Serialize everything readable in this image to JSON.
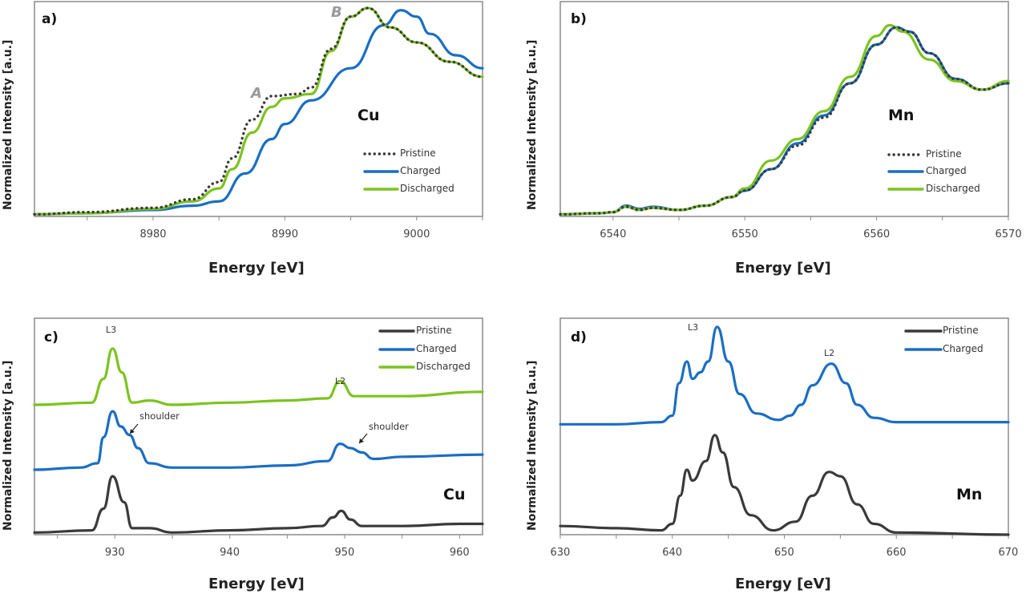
{
  "colors": {
    "pristine": "#3a3a3a",
    "charged": "#1b6ec2",
    "discharged": "#7cc31f",
    "feature_label": "#999999"
  },
  "chart_data": [
    {
      "type": "line",
      "panel_label": "a)",
      "element": "Cu",
      "xlabel": "Energy [eV]",
      "ylabel": "Normalized Intensity [a.u.]",
      "xlim": [
        8971,
        9005
      ],
      "ylim": [
        0,
        1
      ],
      "xticks": [
        8980,
        8990,
        9000
      ],
      "grid": false,
      "legend_placement": "right",
      "feature_labels": [
        "A",
        "B"
      ],
      "series": [
        {
          "name": "Pristine",
          "style": "dotted",
          "color": "#3a3a3a",
          "x": [
            8971,
            8975,
            8980,
            8983,
            8985,
            8986,
            8987.5,
            8989,
            8991,
            8992,
            8993.5,
            8995,
            8996.3,
            8998,
            9000,
            9002.5,
            9005
          ],
          "y": [
            0.01,
            0.02,
            0.04,
            0.08,
            0.16,
            0.27,
            0.45,
            0.56,
            0.57,
            0.6,
            0.78,
            0.93,
            0.97,
            0.88,
            0.81,
            0.72,
            0.65
          ]
        },
        {
          "name": "Charged",
          "style": "solid",
          "color": "#1b6ec2",
          "x": [
            8971,
            8975,
            8980,
            8983,
            8985,
            8987,
            8989,
            8990,
            8992,
            8995,
            8997.5,
            8998.8,
            9000,
            9001,
            9003,
            9005
          ],
          "y": [
            0.01,
            0.015,
            0.03,
            0.05,
            0.07,
            0.2,
            0.36,
            0.43,
            0.54,
            0.69,
            0.89,
            0.96,
            0.93,
            0.85,
            0.75,
            0.69
          ]
        },
        {
          "name": "Discharged",
          "style": "solid",
          "color": "#7cc31f",
          "x": [
            8971,
            8975,
            8980,
            8983,
            8985,
            8986,
            8987.5,
            8989,
            8990,
            8992,
            8993.5,
            8995,
            8996.3,
            8998,
            9000,
            9002.5,
            9005
          ],
          "y": [
            0.01,
            0.015,
            0.035,
            0.07,
            0.13,
            0.22,
            0.39,
            0.51,
            0.55,
            0.57,
            0.77,
            0.93,
            0.97,
            0.88,
            0.81,
            0.72,
            0.65
          ]
        }
      ]
    },
    {
      "type": "line",
      "panel_label": "b)",
      "element": "Mn",
      "xlabel": "Energy [eV]",
      "ylabel": "Normalized Intensity [a.u.]",
      "xlim": [
        6536,
        6570
      ],
      "ylim": [
        0,
        1
      ],
      "xticks": [
        6540,
        6550,
        6560,
        6570
      ],
      "grid": false,
      "legend_placement": "right",
      "series": [
        {
          "name": "Pristine",
          "style": "dotted",
          "color": "#3a3a3a",
          "x": [
            6536,
            6539,
            6540,
            6541,
            6542,
            6543,
            6545,
            6547,
            6549,
            6550,
            6552,
            6554,
            6556,
            6558,
            6560,
            6561.5,
            6562.5,
            6564,
            6566,
            6568,
            6570
          ],
          "y": [
            0.01,
            0.015,
            0.02,
            0.045,
            0.03,
            0.04,
            0.03,
            0.05,
            0.09,
            0.12,
            0.22,
            0.33,
            0.46,
            0.62,
            0.8,
            0.88,
            0.86,
            0.76,
            0.64,
            0.59,
            0.62
          ]
        },
        {
          "name": "Charged",
          "style": "solid",
          "color": "#1b6ec2",
          "x": [
            6536,
            6539,
            6540,
            6541,
            6542,
            6543,
            6545,
            6547,
            6549,
            6550,
            6552,
            6554,
            6556,
            6558,
            6560,
            6561.5,
            6562.5,
            6564,
            6566,
            6568,
            6570
          ],
          "y": [
            0.01,
            0.015,
            0.02,
            0.05,
            0.035,
            0.045,
            0.03,
            0.05,
            0.09,
            0.12,
            0.22,
            0.34,
            0.47,
            0.62,
            0.8,
            0.88,
            0.86,
            0.76,
            0.64,
            0.59,
            0.62
          ]
        },
        {
          "name": "Discharged",
          "style": "solid",
          "color": "#7cc31f",
          "x": [
            6536,
            6539,
            6540,
            6541,
            6542,
            6543,
            6545,
            6547,
            6549,
            6550,
            6552,
            6554,
            6556,
            6558,
            6560,
            6561,
            6562,
            6564,
            6566,
            6568,
            6570
          ],
          "y": [
            0.01,
            0.015,
            0.02,
            0.045,
            0.03,
            0.04,
            0.03,
            0.05,
            0.09,
            0.13,
            0.26,
            0.36,
            0.49,
            0.65,
            0.84,
            0.89,
            0.86,
            0.73,
            0.63,
            0.59,
            0.63
          ]
        }
      ]
    },
    {
      "type": "line",
      "panel_label": "c)",
      "element": "Cu",
      "xlabel": "Energy [eV]",
      "ylabel": "Normalized Intensity [a.u.]",
      "xlim": [
        923,
        962
      ],
      "ylim": [
        0,
        1
      ],
      "xticks": [
        930,
        940,
        950,
        960
      ],
      "grid": false,
      "legend_placement": "top-right",
      "peak_labels": [
        "L3",
        "L2"
      ],
      "annotations": [
        "shoulder",
        "shoulder"
      ],
      "series": [
        {
          "name": "Pristine",
          "style": "solid",
          "color": "#3a3a3a",
          "x": [
            923,
            928,
            929,
            929.8,
            930.8,
            931.5,
            933,
            935,
            940,
            945,
            948,
            949,
            949.7,
            950.5,
            951.5,
            955,
            960,
            962
          ],
          "y": [
            0.01,
            0.02,
            0.12,
            0.27,
            0.15,
            0.03,
            0.03,
            0.01,
            0.02,
            0.03,
            0.04,
            0.08,
            0.11,
            0.07,
            0.04,
            0.04,
            0.05,
            0.05
          ]
        },
        {
          "name": "Charged",
          "style": "solid",
          "color": "#1b6ec2",
          "x": [
            923,
            927,
            928.5,
            929,
            929.8,
            930.5,
            931.3,
            932,
            933,
            935,
            940,
            945,
            948.5,
            949.6,
            950.5,
            951.5,
            952.5,
            955,
            962
          ],
          "y": [
            0.3,
            0.31,
            0.33,
            0.45,
            0.57,
            0.5,
            0.46,
            0.4,
            0.33,
            0.31,
            0.31,
            0.32,
            0.34,
            0.42,
            0.4,
            0.38,
            0.35,
            0.36,
            0.37
          ]
        },
        {
          "name": "Discharged",
          "style": "solid",
          "color": "#7cc31f",
          "x": [
            923,
            928,
            929,
            929.8,
            930.6,
            931.5,
            933,
            935,
            940,
            945,
            948.5,
            949.6,
            950.8,
            955,
            962
          ],
          "y": [
            0.6,
            0.61,
            0.72,
            0.86,
            0.75,
            0.61,
            0.62,
            0.6,
            0.61,
            0.62,
            0.63,
            0.71,
            0.64,
            0.64,
            0.66
          ]
        }
      ]
    },
    {
      "type": "line",
      "panel_label": "d)",
      "element": "Mn",
      "xlabel": "Energy [eV]",
      "ylabel": "Normalized Intensity [a.u.]",
      "xlim": [
        630,
        670
      ],
      "ylim": [
        0,
        1
      ],
      "xticks": [
        630,
        640,
        650,
        660,
        670
      ],
      "grid": false,
      "legend_placement": "top-right",
      "peak_labels": [
        "L3",
        "L2"
      ],
      "series": [
        {
          "name": "Pristine",
          "style": "solid",
          "color": "#3a3a3a",
          "x": [
            630,
            635,
            639,
            640,
            640.7,
            641.3,
            641.8,
            643,
            643.8,
            644.5,
            645.5,
            647,
            649,
            651,
            652.5,
            654,
            655,
            656.5,
            658,
            660,
            670
          ],
          "y": [
            0.04,
            0.03,
            0.02,
            0.05,
            0.18,
            0.3,
            0.25,
            0.34,
            0.46,
            0.38,
            0.22,
            0.09,
            0.02,
            0.06,
            0.18,
            0.29,
            0.27,
            0.14,
            0.05,
            0.01,
            0.0
          ]
        },
        {
          "name": "Charged",
          "style": "solid",
          "color": "#1b6ec2",
          "x": [
            630,
            635,
            639,
            640,
            640.6,
            641.3,
            641.8,
            642.5,
            643.2,
            644,
            645,
            646,
            647.5,
            649.5,
            650.5,
            651.5,
            652.5,
            654.2,
            655.5,
            656.5,
            658,
            660,
            670
          ],
          "y": [
            0.51,
            0.51,
            0.52,
            0.55,
            0.7,
            0.8,
            0.72,
            0.75,
            0.8,
            0.96,
            0.8,
            0.65,
            0.56,
            0.53,
            0.55,
            0.6,
            0.69,
            0.79,
            0.7,
            0.6,
            0.54,
            0.52,
            0.52
          ]
        }
      ]
    }
  ]
}
